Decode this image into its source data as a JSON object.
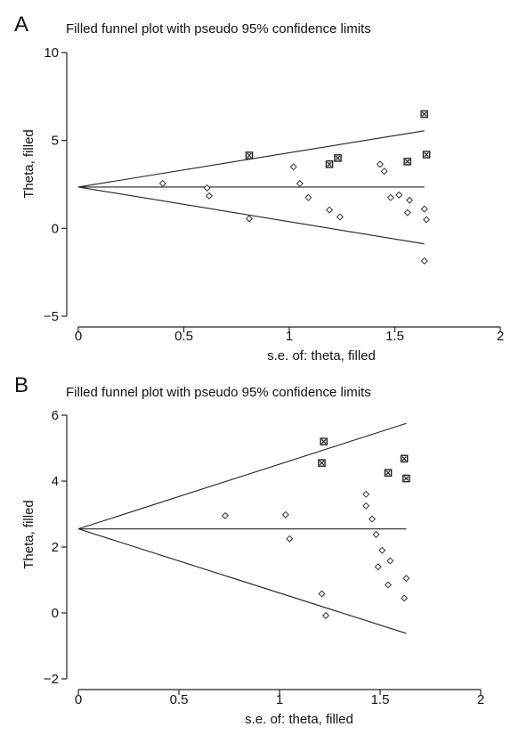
{
  "chart_data": [
    {
      "type": "scatter",
      "panel_label": "A",
      "title": "Filled funnel plot with pseudo 95% confidence limits",
      "xlabel": "s.e. of: theta, filled",
      "ylabel": "Theta, filled",
      "xlim": [
        0,
        2
      ],
      "ylim": [
        -5,
        10
      ],
      "xticks": [
        0,
        0.5,
        1,
        1.5,
        2
      ],
      "xtick_labels": [
        "0",
        "0.5",
        "1",
        "1.5",
        "2"
      ],
      "yticks": [
        -5,
        0,
        5,
        10
      ],
      "ytick_labels": [
        "−5",
        "0",
        "5",
        "10"
      ],
      "grid": false,
      "pooled_estimate": 2.35,
      "ci_upper_end": [
        1.64,
        5.55
      ],
      "ci_lower_end": [
        1.64,
        -0.88
      ],
      "series": [
        {
          "marker": "diamond",
          "points": [
            [
              0.4,
              2.55
            ],
            [
              0.61,
              2.3
            ],
            [
              0.62,
              1.85
            ],
            [
              0.81,
              0.55
            ],
            [
              1.02,
              3.5
            ],
            [
              1.05,
              2.55
            ],
            [
              1.09,
              1.75
            ],
            [
              1.19,
              1.05
            ],
            [
              1.24,
              0.65
            ],
            [
              1.43,
              3.65
            ],
            [
              1.45,
              3.25
            ],
            [
              1.48,
              1.75
            ],
            [
              1.52,
              1.9
            ],
            [
              1.56,
              0.9
            ],
            [
              1.57,
              1.6
            ],
            [
              1.64,
              1.1
            ],
            [
              1.65,
              0.5
            ],
            [
              1.64,
              -1.85
            ]
          ]
        },
        {
          "marker": "boxed-x",
          "points": [
            [
              0.81,
              4.15
            ],
            [
              1.19,
              3.65
            ],
            [
              1.23,
              4.0
            ],
            [
              1.56,
              3.8
            ],
            [
              1.64,
              6.5
            ],
            [
              1.65,
              4.2
            ]
          ]
        }
      ]
    },
    {
      "type": "scatter",
      "panel_label": "B",
      "title": "Filled funnel plot with pseudo 95% confidence limits",
      "xlabel": "s.e. of: theta, filled",
      "ylabel": "Theta, filled",
      "xlim": [
        0,
        2
      ],
      "ylim": [
        -2,
        6
      ],
      "xticks": [
        0,
        0.5,
        1,
        1.5,
        2
      ],
      "xtick_labels": [
        "0",
        "0.5",
        "1",
        "1.5",
        "2"
      ],
      "yticks": [
        -2,
        0,
        2,
        4,
        6
      ],
      "ytick_labels": [
        "−2",
        "0",
        "2",
        "4",
        "6"
      ],
      "grid": false,
      "pooled_estimate": 2.55,
      "ci_upper_end": [
        1.63,
        5.75
      ],
      "ci_lower_end": [
        1.63,
        -0.62
      ],
      "series": [
        {
          "marker": "diamond",
          "points": [
            [
              0.73,
              2.95
            ],
            [
              1.03,
              2.98
            ],
            [
              1.05,
              2.25
            ],
            [
              1.21,
              0.58
            ],
            [
              1.23,
              -0.08
            ],
            [
              1.43,
              3.6
            ],
            [
              1.43,
              3.25
            ],
            [
              1.46,
              2.85
            ],
            [
              1.48,
              2.38
            ],
            [
              1.51,
              1.9
            ],
            [
              1.49,
              1.4
            ],
            [
              1.55,
              1.58
            ],
            [
              1.54,
              0.85
            ],
            [
              1.62,
              0.45
            ],
            [
              1.63,
              1.05
            ]
          ]
        },
        {
          "marker": "boxed-x",
          "points": [
            [
              1.22,
              5.2
            ],
            [
              1.21,
              4.55
            ],
            [
              1.54,
              4.25
            ],
            [
              1.62,
              4.68
            ],
            [
              1.63,
              4.08
            ]
          ]
        }
      ]
    }
  ]
}
